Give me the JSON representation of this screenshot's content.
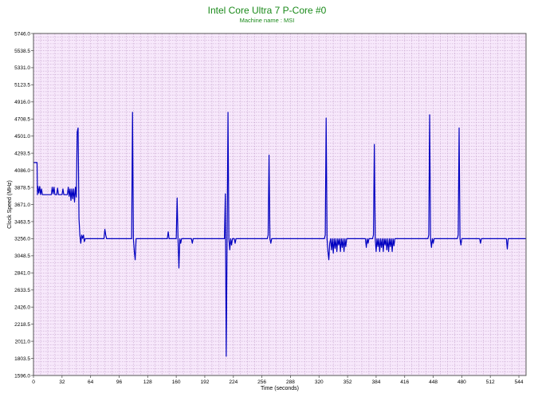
{
  "title": "Intel Core Ultra 7 P-Core #0",
  "subtitle": "Machine name : MSI",
  "colors": {
    "title": "#1a8a1a",
    "plot_background": "#f7e8fb",
    "grid": "#c8a6cf",
    "series": "#0000c0"
  },
  "chart_data": {
    "type": "line",
    "title": "Intel Core Ultra 7 P-Core #0",
    "subtitle": "Machine name : MSI",
    "xlabel": "Time (seconds)",
    "ylabel": "Clock Speed (MHz)",
    "xlim": [
      0,
      552
    ],
    "ylim": [
      1596.0,
      5746.0
    ],
    "grid": true,
    "x_ticks": [
      0,
      32,
      64,
      96,
      128,
      160,
      192,
      224,
      256,
      288,
      320,
      352,
      384,
      416,
      448,
      480,
      512,
      544
    ],
    "y_ticks": [
      "1596.0",
      "1803.5",
      "2011.0",
      "2218.5",
      "2426.0",
      "2633.5",
      "2841.0",
      "3048.5",
      "3256.0",
      "3463.5",
      "3671.0",
      "3878.5",
      "4086.0",
      "4293.5",
      "4501.0",
      "4708.5",
      "4916.0",
      "5123.5",
      "5331.0",
      "5538.5",
      "5746.0"
    ],
    "series": [
      {
        "values": [
          [
            0,
            4180
          ],
          [
            4,
            4180
          ],
          [
            4.5,
            3790
          ],
          [
            5,
            3890
          ],
          [
            6,
            3810
          ],
          [
            7,
            3890
          ],
          [
            8,
            3790
          ],
          [
            9,
            3860
          ],
          [
            10,
            3790
          ],
          [
            20,
            3790
          ],
          [
            21,
            3880
          ],
          [
            22,
            3800
          ],
          [
            23,
            3880
          ],
          [
            24,
            3790
          ],
          [
            26,
            3790
          ],
          [
            27,
            3870
          ],
          [
            28,
            3790
          ],
          [
            32,
            3790
          ],
          [
            33,
            3860
          ],
          [
            34,
            3790
          ],
          [
            38,
            3790
          ],
          [
            39,
            3880
          ],
          [
            40,
            3770
          ],
          [
            41,
            3860
          ],
          [
            42,
            3720
          ],
          [
            43,
            3860
          ],
          [
            44,
            3740
          ],
          [
            45,
            3860
          ],
          [
            46,
            3700
          ],
          [
            47,
            3880
          ],
          [
            48,
            3760
          ],
          [
            49,
            4550
          ],
          [
            50,
            4600
          ],
          [
            51,
            3500
          ],
          [
            52,
            3300
          ],
          [
            53,
            3200
          ],
          [
            54,
            3300
          ],
          [
            55,
            3260
          ],
          [
            56,
            3300
          ],
          [
            57,
            3220
          ],
          [
            58,
            3256
          ],
          [
            79,
            3256
          ],
          [
            80,
            3370
          ],
          [
            81,
            3300
          ],
          [
            82,
            3256
          ],
          [
            110,
            3256
          ],
          [
            111,
            4790
          ],
          [
            112,
            3256
          ],
          [
            113,
            3100
          ],
          [
            114,
            3000
          ],
          [
            115,
            3256
          ],
          [
            150,
            3256
          ],
          [
            151,
            3340
          ],
          [
            152,
            3256
          ],
          [
            160,
            3256
          ],
          [
            161,
            3750
          ],
          [
            162,
            3256
          ],
          [
            163,
            2900
          ],
          [
            164,
            3256
          ],
          [
            165,
            3200
          ],
          [
            166,
            3256
          ],
          [
            177,
            3256
          ],
          [
            178,
            3200
          ],
          [
            179,
            3256
          ],
          [
            214,
            3256
          ],
          [
            215,
            3800
          ],
          [
            216,
            1830
          ],
          [
            217,
            3256
          ],
          [
            218,
            4790
          ],
          [
            219,
            3256
          ],
          [
            220,
            3120
          ],
          [
            221,
            3256
          ],
          [
            222,
            3180
          ],
          [
            223,
            3256
          ],
          [
            225,
            3256
          ],
          [
            226,
            3200
          ],
          [
            227,
            3256
          ],
          [
            262,
            3256
          ],
          [
            263,
            3300
          ],
          [
            264,
            4270
          ],
          [
            265,
            3256
          ],
          [
            266,
            3200
          ],
          [
            267,
            3256
          ],
          [
            326,
            3256
          ],
          [
            327,
            3300
          ],
          [
            328,
            4720
          ],
          [
            329,
            3256
          ],
          [
            330,
            3100
          ],
          [
            331,
            3000
          ],
          [
            332,
            3200
          ],
          [
            333,
            3256
          ],
          [
            334,
            3120
          ],
          [
            335,
            3256
          ],
          [
            336,
            3080
          ],
          [
            337,
            3256
          ],
          [
            338,
            3140
          ],
          [
            339,
            3256
          ],
          [
            340,
            3100
          ],
          [
            341,
            3256
          ],
          [
            342,
            3180
          ],
          [
            343,
            3256
          ],
          [
            344,
            3100
          ],
          [
            345,
            3256
          ],
          [
            346,
            3150
          ],
          [
            347,
            3256
          ],
          [
            348,
            3100
          ],
          [
            349,
            3256
          ],
          [
            350,
            3160
          ],
          [
            351,
            3256
          ],
          [
            372,
            3256
          ],
          [
            373,
            3150
          ],
          [
            374,
            3256
          ],
          [
            375,
            3200
          ],
          [
            376,
            3256
          ],
          [
            380,
            3256
          ],
          [
            381,
            3300
          ],
          [
            382,
            4400
          ],
          [
            383,
            3256
          ],
          [
            384,
            3100
          ],
          [
            385,
            3256
          ],
          [
            386,
            3160
          ],
          [
            387,
            3256
          ],
          [
            388,
            3100
          ],
          [
            389,
            3256
          ],
          [
            390,
            3150
          ],
          [
            391,
            3256
          ],
          [
            392,
            3100
          ],
          [
            393,
            3256
          ],
          [
            394,
            3180
          ],
          [
            395,
            3256
          ],
          [
            396,
            3120
          ],
          [
            397,
            3256
          ],
          [
            398,
            3100
          ],
          [
            399,
            3256
          ],
          [
            400,
            3160
          ],
          [
            401,
            3256
          ],
          [
            402,
            3100
          ],
          [
            403,
            3256
          ],
          [
            404,
            3170
          ],
          [
            405,
            3256
          ],
          [
            442,
            3256
          ],
          [
            443,
            3300
          ],
          [
            444,
            4760
          ],
          [
            445,
            3256
          ],
          [
            446,
            3150
          ],
          [
            447,
            3256
          ],
          [
            448,
            3200
          ],
          [
            449,
            3256
          ],
          [
            475,
            3256
          ],
          [
            476,
            3300
          ],
          [
            477,
            4600
          ],
          [
            478,
            3256
          ],
          [
            479,
            3180
          ],
          [
            480,
            3256
          ],
          [
            500,
            3256
          ],
          [
            501,
            3200
          ],
          [
            502,
            3256
          ],
          [
            530,
            3256
          ],
          [
            531,
            3130
          ],
          [
            532,
            3256
          ],
          [
            552,
            3256
          ]
        ]
      }
    ]
  }
}
